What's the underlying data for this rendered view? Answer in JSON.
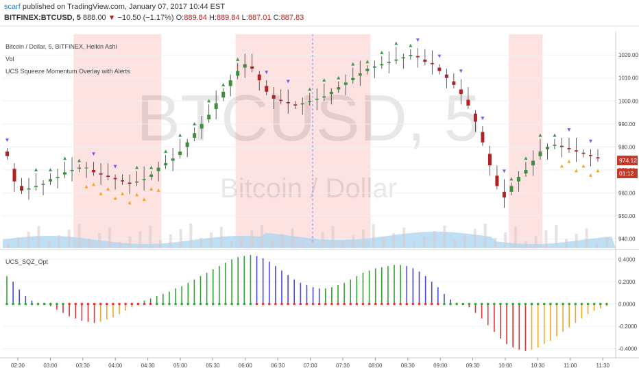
{
  "header": {
    "user": "scarf",
    "published": "published on TradingView.com, January 07, 2017 10:44 EST",
    "symbol": "BITFINEX:BTCUSD, 5",
    "last": "888.00",
    "arrow": "▼",
    "change": "−10.50 (−1.17%)",
    "o_label": "O:",
    "o": "889.84",
    "h_label": "H:",
    "h": "889.84",
    "l_label": "L:",
    "l": "887.01",
    "c_label": "C:",
    "c": "887.83"
  },
  "legend": {
    "main": "Bitcoin / Dollar, 5, BITFINEX, Heikin Ashi",
    "vol": "Vol",
    "indicator": "UCS Squeeze Momentum Overlay with Alerts",
    "oscillator": "UCS_SQZ_Opt"
  },
  "watermark": {
    "symbol": "BTCUSD, 5",
    "name": "Bitcoin / Dollar"
  },
  "colors": {
    "up": "#3d8f3d",
    "down": "#b22222",
    "osc_green": "#32a032",
    "osc_blue": "#4646dc",
    "osc_red": "#e03232",
    "osc_orange": "#f5a623",
    "squeeze_band": "#fde2e2",
    "volume_area": "#a9d4f2",
    "price_label": "#c0392b"
  },
  "chart_data": [
    {
      "type": "candlestick",
      "title": "Bitcoin / Dollar, 5, BITFINEX, Heikin Ashi",
      "y_ticks": [
        940,
        950,
        960,
        970,
        980,
        990,
        1000,
        1010,
        1020
      ],
      "y_tick_labels": [
        "940.00",
        "950.00",
        "960.00",
        "970.00",
        "980.00",
        "990.00",
        "1000.00",
        "1010.00",
        "1020.00"
      ],
      "ylim": [
        936,
        1029
      ],
      "x_tick_labels": [
        "02:30",
        "03:00",
        "03:30",
        "04:00",
        "04:30",
        "05:00",
        "05:30",
        "06:00",
        "06:30",
        "07:00",
        "07:30",
        "08:00",
        "08:30",
        "09:00",
        "09:30",
        "10:00",
        "10:30",
        "11:00",
        "11:30"
      ],
      "price_labels": [
        "974.12",
        "01:12"
      ],
      "close_path": [
        976,
        965,
        961,
        962,
        963,
        964,
        966,
        967,
        969,
        970,
        971,
        971,
        969,
        968,
        967,
        966,
        965,
        964,
        965,
        966,
        968,
        971,
        973,
        975,
        978,
        982,
        986,
        990,
        994,
        999,
        1004,
        1009,
        1013,
        1016,
        1014,
        1009,
        1004,
        1001,
        1000,
        999,
        998,
        999,
        1000,
        1001,
        1002,
        1004,
        1006,
        1008,
        1010,
        1012,
        1014,
        1015,
        1016,
        1017,
        1018,
        1019,
        1020,
        1019,
        1017,
        1016,
        1013,
        1010,
        1007,
        1003,
        998,
        991,
        982,
        972,
        963,
        958,
        963,
        967,
        970,
        974,
        978,
        980,
        981,
        980,
        979,
        978,
        977,
        976,
        975
      ]
    },
    {
      "type": "bar",
      "title": "UCS_SQZ_Opt",
      "y_ticks": [
        -0.4,
        -0.2,
        0,
        0.2,
        0.4
      ],
      "y_tick_labels": [
        "-0.4000",
        "-0.2000",
        "0.0000",
        "0.2000",
        "0.4000"
      ],
      "ylim": [
        -0.47,
        0.47
      ],
      "values": [
        0.25,
        0.2,
        0.13,
        0.07,
        0.03,
        0.01,
        0,
        -0.02,
        -0.05,
        -0.08,
        -0.11,
        -0.13,
        -0.15,
        -0.16,
        -0.17,
        -0.16,
        -0.14,
        -0.12,
        -0.09,
        -0.06,
        -0.03,
        0.01,
        0.03,
        0.05,
        0.07,
        0.09,
        0.11,
        0.14,
        0.16,
        0.19,
        0.22,
        0.25,
        0.28,
        0.31,
        0.34,
        0.37,
        0.4,
        0.42,
        0.43,
        0.44,
        0.43,
        0.41,
        0.38,
        0.34,
        0.3,
        0.26,
        0.22,
        0.19,
        0.17,
        0.15,
        0.14,
        0.14,
        0.15,
        0.17,
        0.19,
        0.22,
        0.25,
        0.28,
        0.3,
        0.32,
        0.33,
        0.34,
        0.35,
        0.35,
        0.34,
        0.32,
        0.29,
        0.25,
        0.2,
        0.15,
        0.09,
        0.04,
        0.01,
        0,
        -0.03,
        -0.08,
        -0.13,
        -0.19,
        -0.25,
        -0.31,
        -0.36,
        -0.39,
        -0.41,
        -0.42,
        -0.41,
        -0.39,
        -0.36,
        -0.33,
        -0.29,
        -0.25,
        -0.21,
        -0.17,
        -0.13,
        -0.09,
        -0.06,
        -0.04,
        -0.02
      ]
    }
  ]
}
